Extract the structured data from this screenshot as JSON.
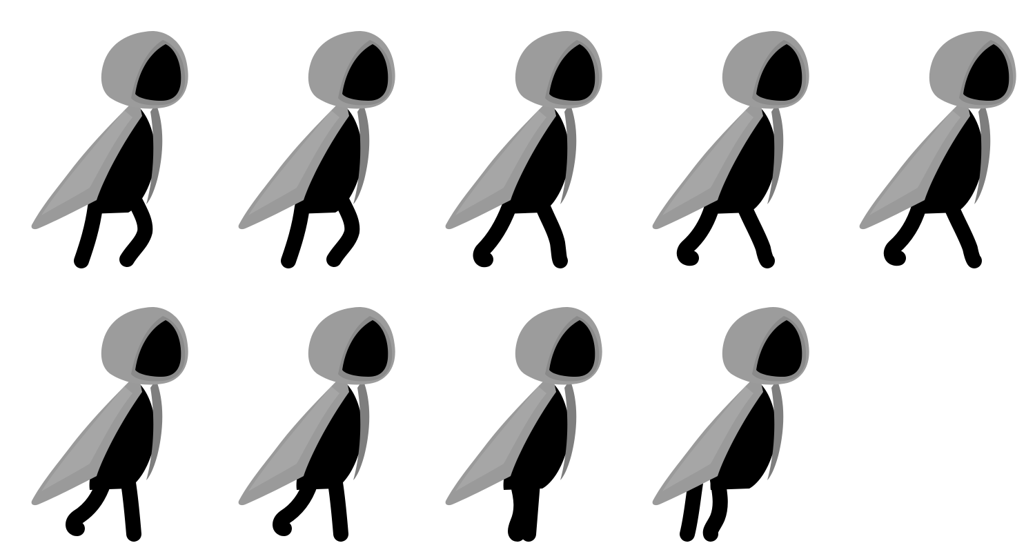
{
  "sprite_sheet": {
    "rows": 2,
    "columns": 5,
    "frame_count": 9,
    "colors": {
      "background": "#ffffff",
      "cloak": "#9a9a9a",
      "cloak_shadow": "#7e7e7e",
      "body": "#000000"
    },
    "frames": [
      {
        "pose": "left-back-right-bent"
      },
      {
        "pose": "left-back-right-bent"
      },
      {
        "pose": "stride-open"
      },
      {
        "pose": "stride-wide"
      },
      {
        "pose": "stride-wide"
      },
      {
        "pose": "back-foot-lift"
      },
      {
        "pose": "back-foot-lift"
      },
      {
        "pose": "legs-together"
      },
      {
        "pose": "legs-crossed"
      }
    ]
  }
}
